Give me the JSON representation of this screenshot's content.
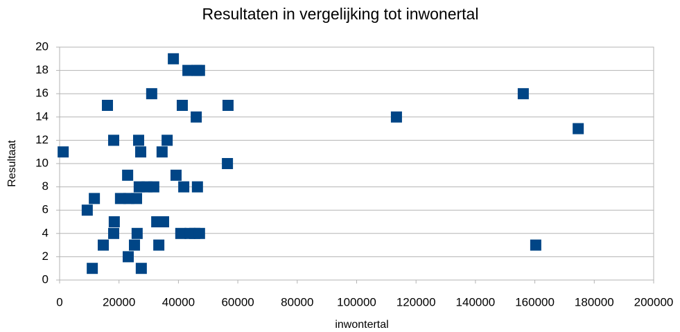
{
  "chart_data": {
    "type": "scatter",
    "title": "Resultaten in vergelijking tot inwonertal",
    "xlabel": "inwontertal",
    "ylabel": "Resultaat",
    "color": "#004586",
    "grid": true,
    "xlim": [
      0,
      200000
    ],
    "xticks": [
      0,
      20000,
      40000,
      60000,
      80000,
      100000,
      120000,
      140000,
      160000,
      180000,
      200000
    ],
    "ylim": [
      0,
      20
    ],
    "yticks": [
      0,
      2,
      4,
      6,
      8,
      10,
      12,
      14,
      16,
      18,
      20
    ],
    "x": [
      1200,
      9300,
      11000,
      11700,
      14700,
      16100,
      18200,
      18400,
      18200,
      20500,
      22900,
      23100,
      23300,
      25200,
      25900,
      26100,
      26600,
      26800,
      27300,
      27500,
      29400,
      31000,
      31700,
      32700,
      33400,
      34500,
      35000,
      36200,
      38300,
      39200,
      40800,
      41300,
      41800,
      43200,
      43900,
      45500,
      46000,
      46200,
      46400,
      47100,
      47100,
      56500,
      56700,
      113400,
      156100,
      160300,
      174600
    ],
    "y": [
      11,
      6,
      1,
      7,
      3,
      15,
      12,
      5,
      4,
      7,
      9,
      2,
      7,
      3,
      7,
      4,
      12,
      8,
      11,
      1,
      8,
      16,
      8,
      5,
      3,
      11,
      5,
      12,
      19,
      9,
      4,
      15,
      8,
      18,
      4,
      4,
      14,
      18,
      8,
      18,
      4,
      10,
      15,
      14,
      16,
      3,
      13
    ]
  }
}
